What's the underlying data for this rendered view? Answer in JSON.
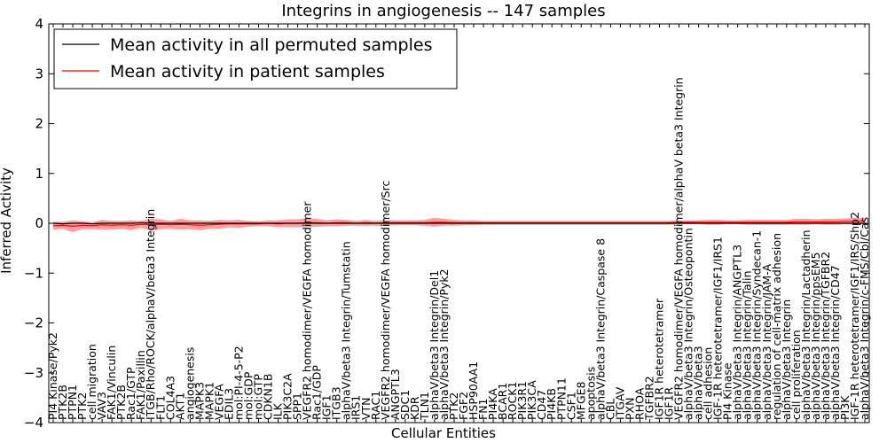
{
  "chart_data": {
    "type": "line",
    "title": "Integrins in angiogenesis -- 147 samples",
    "xlabel": "Cellular Entities",
    "ylabel": "Inferred Activity",
    "ylim": [
      -4,
      4
    ],
    "yticks": [
      -4,
      -3,
      -2,
      -1,
      0,
      1,
      2,
      3,
      4
    ],
    "grid": false,
    "legend_position": "top-left",
    "categories": [
      "PI4 Kinase/Pyk2",
      "PTK2B",
      "PTPN1",
      "PTK2",
      "cell migration",
      "VAV3",
      "FAK1/Vinculin",
      "PTK2B",
      "Rac1/GTP",
      "FAK1/Paxillin",
      "ITGB/Rho/ROCK/alphaV/beta3 Integrin",
      "FLT1",
      "COL4A3",
      "AKT1",
      "angiogenesis",
      "MAPK3",
      "MAPK1",
      "VEGFA",
      "EDIL3",
      "mol:PI-4-5-P2",
      "mol:GDP",
      "mol:GTP",
      "CDKN1B",
      "ILK",
      "PIK3C2A",
      "SPP1",
      "VEGFR2 homodimer/VEGFA homodimer",
      "Rac1/GDP",
      "IGF1",
      "ITGB3",
      "alphaV/beta3 Integrin/Tumstatin",
      "IRS1",
      "VTN",
      "RAC1",
      "VEGFR2 homodimer/VEGFA homodimer/Src",
      "ANGPTL3",
      "SDC1",
      "KDR",
      "TLN1",
      "alphaV/beta3 Integrin/Del1",
      "alphaV/beta3 Integrin/Pyk2",
      "PTK2",
      "FGF2",
      "HSP90AA1",
      "FN1",
      "PI4KA",
      "BCAR1",
      "ROCK1",
      "PIK3R1",
      "PIK3CA",
      "CD47",
      "PI4KB",
      "PTPN11",
      "CSF1",
      "MFGE8",
      "apoptosis",
      "alphaV/beta3 Integrin/Caspase 8",
      "CBL",
      "ITGAV",
      "PXN",
      "RHOA",
      "TGFBR2",
      "IGF1R heterotetramer",
      "IGF1R",
      "VEGFR2 homodimer/VEGFA homodimer/alphaV beta3 Integrin",
      "alphaV/beta3 Integrin/Osteopontin",
      "alphaV/beta3",
      "cell adhesion",
      "IGF-1R heterotetramer/IGF1/IRS1",
      "PI4 Kinase",
      "alphaV/beta3 Integrin/ANGPTL3",
      "alphaV/beta3 Integrin/Talin",
      "alphaV/beta3 Integrin/Syndecan-1",
      "alphaV/beta3 Integrin/JAM-A",
      "regulation of cell-matrix adhesion",
      "alphaV/beta3 Integrin",
      "cell proliferation",
      "alphaV/beta3 Integrin/Lactadherin",
      "alphaV/beta3 Integrin/ppsEM5",
      "alphaV/beta3 Integrin/TGFBR2",
      "alphaV/beta3 Integrin/CD47",
      "PI3K",
      "IGF-1R heterotetramer/IGF1/IRS/Shp2",
      "alphaV/beta3 Integrin/c-FMS/Cbl/Cas"
    ],
    "series": [
      {
        "name": "Mean activity in all permuted samples",
        "color": "#000000",
        "values": [
          0.0,
          -0.01,
          0.0,
          0.0,
          -0.01,
          0.0,
          0.0,
          0.0,
          0.0,
          0.01,
          0.0,
          0.0,
          0.0,
          0.0,
          0.0,
          0.0,
          0.0,
          0.0,
          0.0,
          0.0,
          0.0,
          0.0,
          0.0,
          0.0,
          0.0,
          0.0,
          0.0,
          0.0,
          0.0,
          0.0,
          0.0,
          0.0,
          0.0,
          0.0,
          0.0,
          0.0,
          0.0,
          0.0,
          0.0,
          0.0,
          0.0,
          0.0,
          0.0,
          0.0,
          0.0,
          0.0,
          0.0,
          0.0,
          0.0,
          0.0,
          0.0,
          0.0,
          0.0,
          0.0,
          0.0,
          0.0,
          0.0,
          0.0,
          0.0,
          0.0,
          0.0,
          0.0,
          0.0,
          0.0,
          0.0,
          0.0,
          0.0,
          0.0,
          0.0,
          0.0,
          0.0,
          0.0,
          0.0,
          0.0,
          0.0,
          0.0,
          0.0,
          0.0,
          0.0,
          0.0,
          0.0,
          0.0,
          0.0,
          0.0
        ]
      },
      {
        "name": "Mean activity in patient samples",
        "color": "#ff0000",
        "band_color": "#ff0000",
        "values": [
          -0.05,
          -0.04,
          -0.06,
          -0.04,
          -0.05,
          -0.03,
          -0.04,
          -0.03,
          -0.04,
          -0.02,
          -0.03,
          -0.02,
          -0.03,
          -0.02,
          -0.03,
          -0.04,
          -0.03,
          -0.02,
          -0.01,
          -0.01,
          -0.01,
          -0.01,
          0.0,
          -0.01,
          0.0,
          0.0,
          0.01,
          0.01,
          0.0,
          0.01,
          0.01,
          0.0,
          0.01,
          0.0,
          0.01,
          0.01,
          0.01,
          0.01,
          0.01,
          0.02,
          0.02,
          0.01,
          0.01,
          0.01,
          0.01,
          0.01,
          0.01,
          0.01,
          0.01,
          0.01,
          0.01,
          0.01,
          0.01,
          0.01,
          0.01,
          0.01,
          0.01,
          0.01,
          0.01,
          0.01,
          0.01,
          0.01,
          0.01,
          0.01,
          0.02,
          0.02,
          0.02,
          0.02,
          0.02,
          0.02,
          0.02,
          0.02,
          0.02,
          0.02,
          0.02,
          0.02,
          0.03,
          0.03,
          0.03,
          0.03,
          0.03,
          0.04,
          0.04,
          0.05
        ],
        "band_halfwidth": [
          0.08,
          0.07,
          0.12,
          0.08,
          0.07,
          0.1,
          0.09,
          0.08,
          0.1,
          0.07,
          0.12,
          0.1,
          0.08,
          0.11,
          0.09,
          0.1,
          0.08,
          0.09,
          0.07,
          0.08,
          0.06,
          0.05,
          0.06,
          0.07,
          0.08,
          0.08,
          0.09,
          0.08,
          0.06,
          0.07,
          0.06,
          0.05,
          0.06,
          0.05,
          0.06,
          0.05,
          0.05,
          0.05,
          0.06,
          0.09,
          0.07,
          0.06,
          0.05,
          0.05,
          0.04,
          0.04,
          0.04,
          0.04,
          0.04,
          0.04,
          0.04,
          0.04,
          0.04,
          0.04,
          0.04,
          0.04,
          0.04,
          0.04,
          0.04,
          0.04,
          0.04,
          0.04,
          0.04,
          0.04,
          0.04,
          0.04,
          0.04,
          0.05,
          0.05,
          0.04,
          0.04,
          0.05,
          0.05,
          0.05,
          0.05,
          0.05,
          0.06,
          0.06,
          0.05,
          0.06,
          0.06,
          0.06,
          0.07,
          0.06
        ]
      }
    ]
  }
}
